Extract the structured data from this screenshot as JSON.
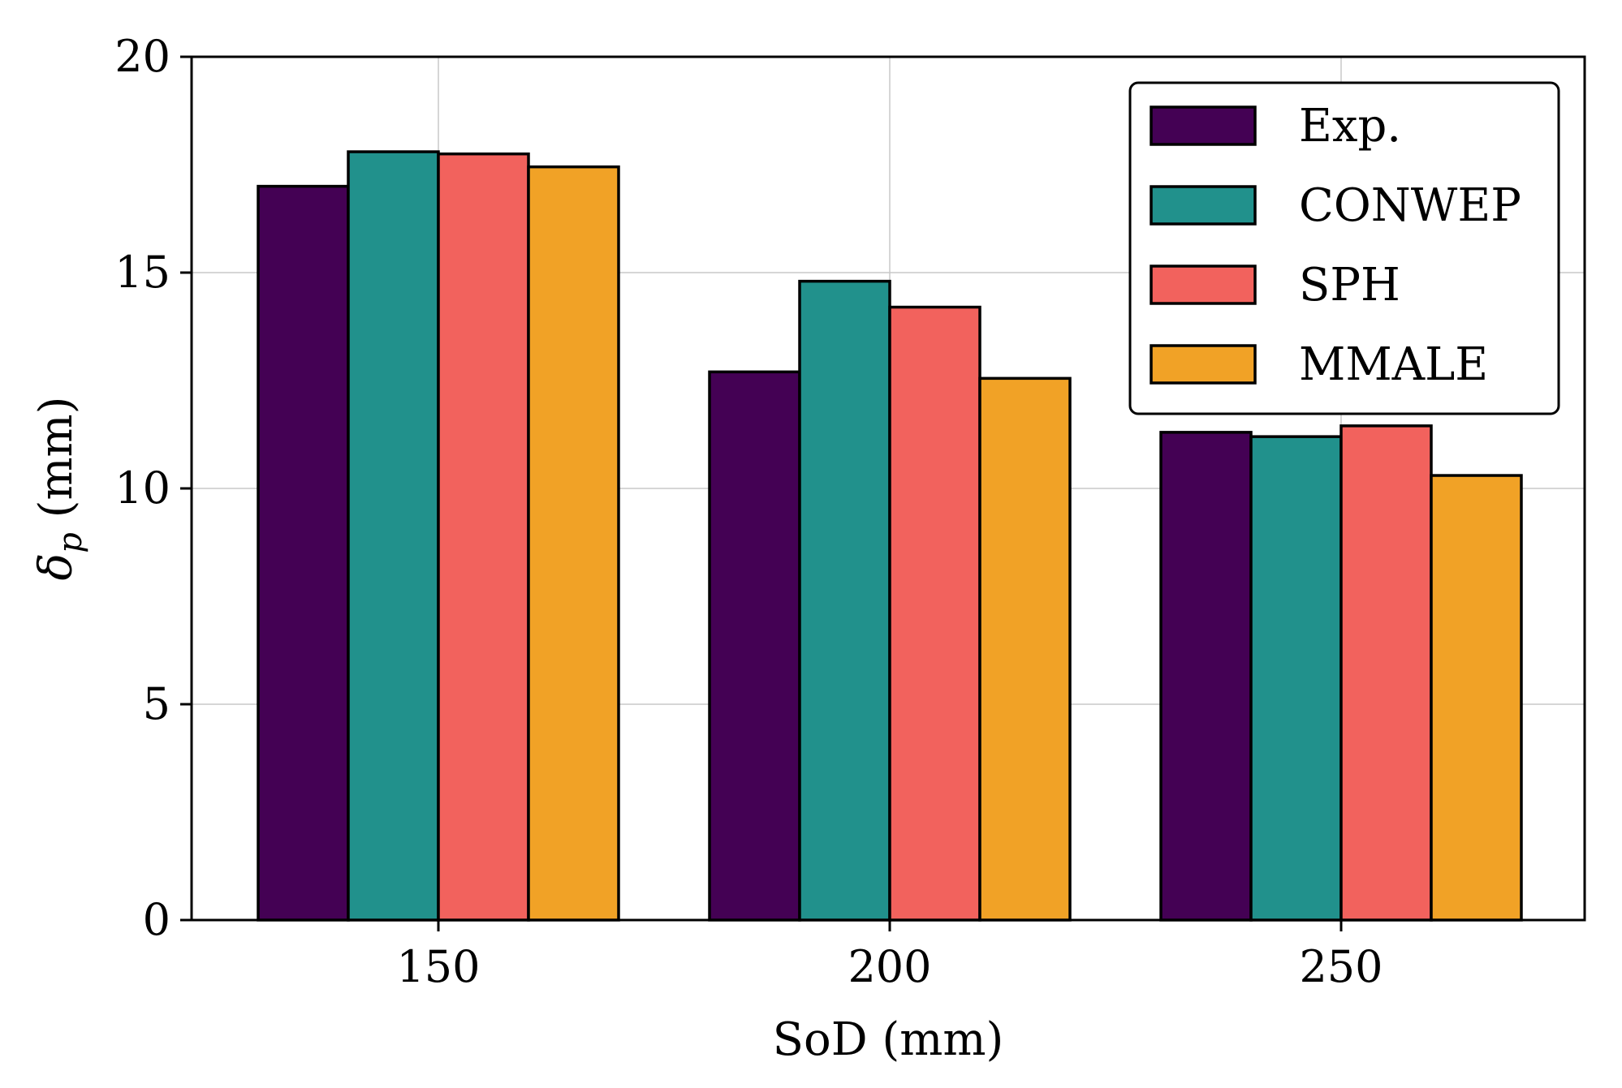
{
  "chart_data": {
    "type": "bar",
    "xlabel": "SoD (mm)",
    "ylabel_symbol": "δ",
    "ylabel_subscript": "p",
    "ylabel_unit": " (mm)",
    "ylim": [
      0,
      20
    ],
    "yticks": [
      0,
      5,
      10,
      15,
      20
    ],
    "categories": [
      "150",
      "200",
      "250"
    ],
    "grid": true,
    "legend_position": "top-right",
    "series": [
      {
        "name": "Exp.",
        "color": "#440154",
        "values": [
          17.0,
          12.7,
          11.3
        ]
      },
      {
        "name": "CONWEP",
        "color": "#21918c",
        "values": [
          17.8,
          14.8,
          11.2
        ]
      },
      {
        "name": "SPH",
        "color": "#f2625d",
        "values": [
          17.75,
          14.2,
          11.45
        ]
      },
      {
        "name": "MMALE",
        "color": "#f1a226",
        "values": [
          17.45,
          12.55,
          10.3
        ]
      }
    ]
  }
}
